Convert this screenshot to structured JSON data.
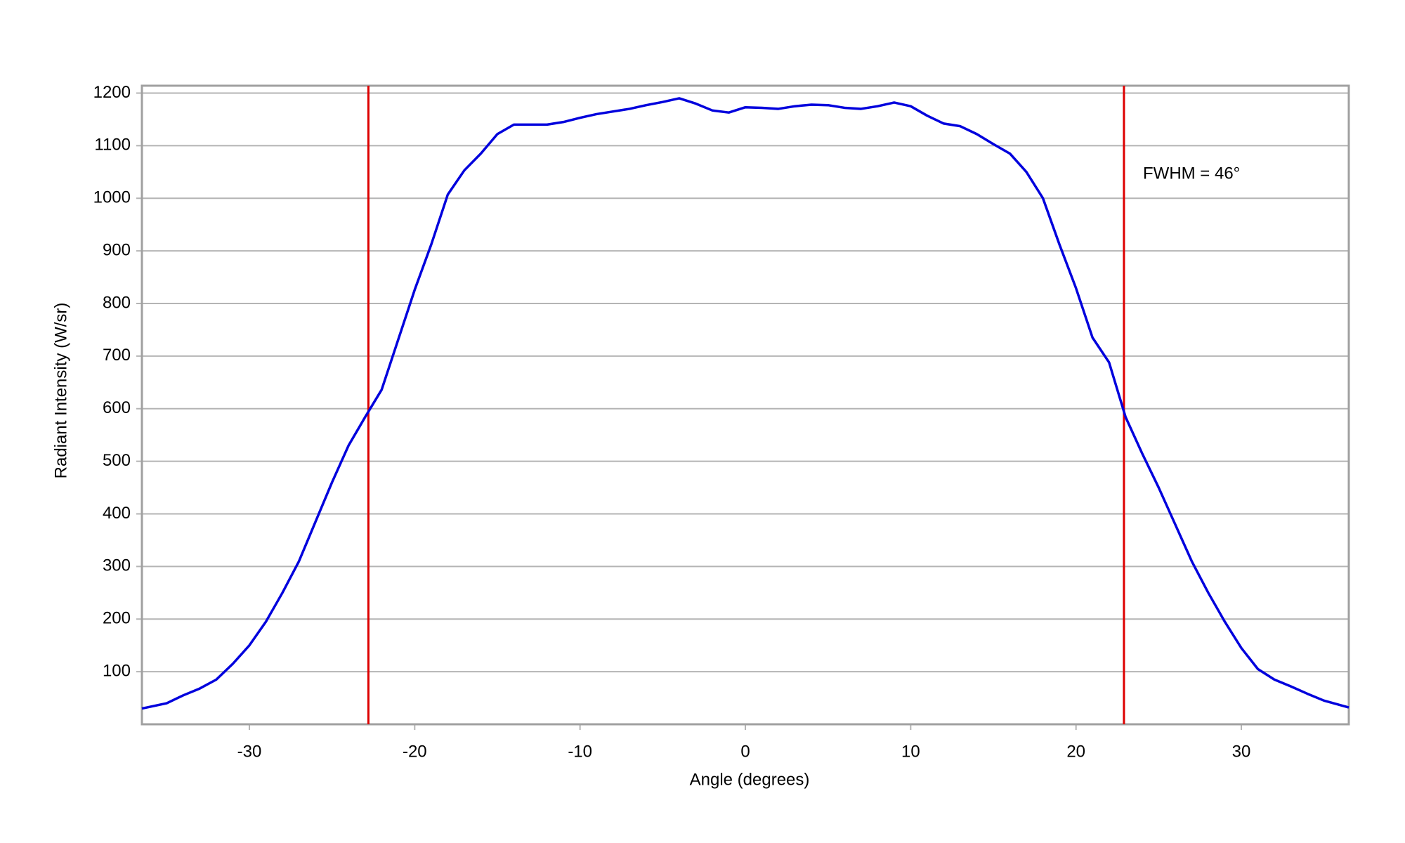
{
  "chart_data": {
    "type": "line",
    "x_label": "Angle (degrees)",
    "y_label": "Radiant Intensity (W/sr)",
    "annotation": "FWHM = 46°",
    "x": [
      -36.5,
      -35,
      -34,
      -33,
      -32,
      -31,
      -30,
      -29,
      -28,
      -27,
      -26,
      -25,
      -24,
      -23,
      -22,
      -21,
      -20,
      -19,
      -18,
      -17,
      -16,
      -15,
      -14,
      -13,
      -12,
      -11,
      -10,
      -9,
      -8,
      -7,
      -6,
      -5,
      -4,
      -3,
      -2,
      -1,
      0,
      1,
      2,
      3,
      4,
      5,
      6,
      7,
      8,
      9,
      10,
      11,
      12,
      13,
      14,
      15,
      16,
      17,
      18,
      19,
      20,
      21,
      22,
      23,
      24,
      25,
      26,
      27,
      28,
      29,
      30,
      31,
      32,
      33,
      34,
      35,
      36.5
    ],
    "series": [
      {
        "color": "#0000dd",
        "values": [
          30,
          40,
          55,
          68,
          85,
          115,
          150,
          195,
          250,
          310,
          385,
          460,
          530,
          584,
          636,
          731,
          826,
          912,
          1007,
          1053,
          1085,
          1122,
          1140,
          1140,
          1140,
          1145,
          1153,
          1160,
          1165,
          1170,
          1177,
          1183,
          1190,
          1180,
          1167,
          1163,
          1173,
          1172,
          1170,
          1175,
          1178,
          1177,
          1172,
          1170,
          1175,
          1182,
          1175,
          1157,
          1142,
          1137,
          1122,
          1103,
          1085,
          1050,
          1000,
          912,
          829,
          735,
          688,
          584,
          515,
          450,
          380,
          310,
          250,
          195,
          145,
          105,
          85,
          72,
          58,
          45,
          32
        ]
      }
    ],
    "vlines": [
      {
        "x": -22.8,
        "color": "#dd0000"
      },
      {
        "x": 22.9,
        "color": "#dd0000"
      }
    ],
    "xlim": [
      -36.5,
      36.5
    ],
    "xticks": [
      -30,
      -20,
      -10,
      0,
      10,
      20,
      30
    ],
    "ylim": [
      0,
      1214
    ],
    "yticks": [
      100,
      200,
      300,
      400,
      500,
      600,
      700,
      800,
      900,
      1000,
      1100,
      1200
    ],
    "grid": true
  }
}
